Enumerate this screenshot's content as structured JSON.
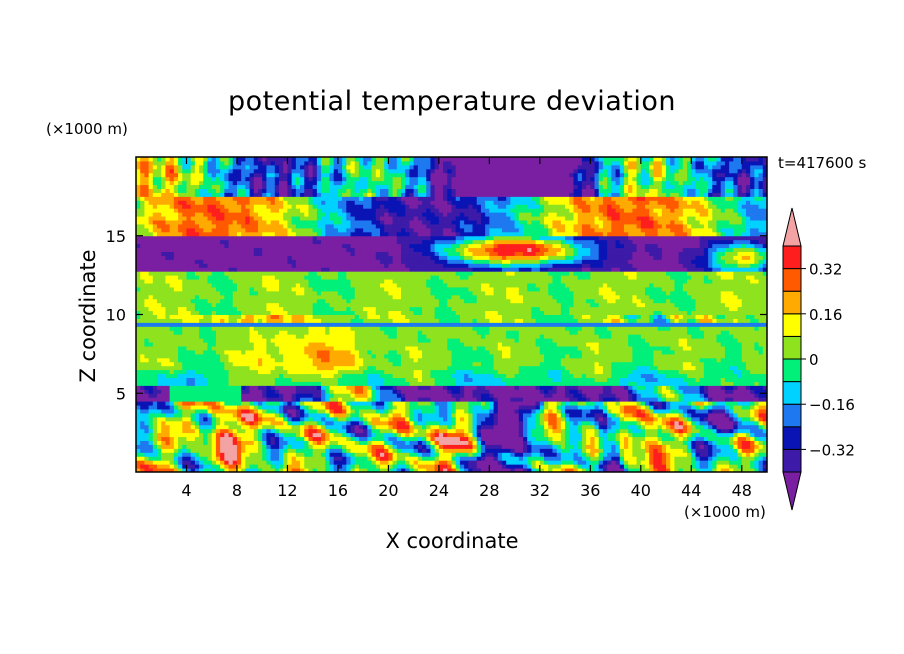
{
  "chart_data": {
    "type": "heatmap",
    "title": "potential temperature deviation",
    "xlabel": "X coordinate",
    "ylabel": "Z coordinate",
    "x_unit": "(×1000 m)",
    "y_unit": "(×1000 m)",
    "time_label": "t=417600 s",
    "xlim": [
      0,
      50
    ],
    "ylim": [
      0,
      20
    ],
    "x_ticks": [
      4,
      8,
      12,
      16,
      20,
      24,
      28,
      32,
      36,
      40,
      44,
      48
    ],
    "y_ticks": [
      5,
      10,
      15
    ],
    "colorbar": {
      "levels": [
        -0.4,
        -0.32,
        -0.24,
        -0.16,
        -0.08,
        0,
        0.08,
        0.16,
        0.24,
        0.32,
        0.4
      ],
      "labels": [
        "0.32",
        "0.16",
        "0",
        "−0.16",
        "−0.32"
      ],
      "label_values": [
        0.32,
        0.16,
        0,
        -0.16,
        -0.32
      ],
      "colors": [
        "#7a1fa2",
        "#3d1aa8",
        "#0a14b4",
        "#1e78f0",
        "#00d2ff",
        "#00f07a",
        "#8ee21e",
        "#ffff00",
        "#ffaa00",
        "#ff5a00",
        "#ff1e1e",
        "#f3a3a3"
      ]
    },
    "grid": false
  }
}
